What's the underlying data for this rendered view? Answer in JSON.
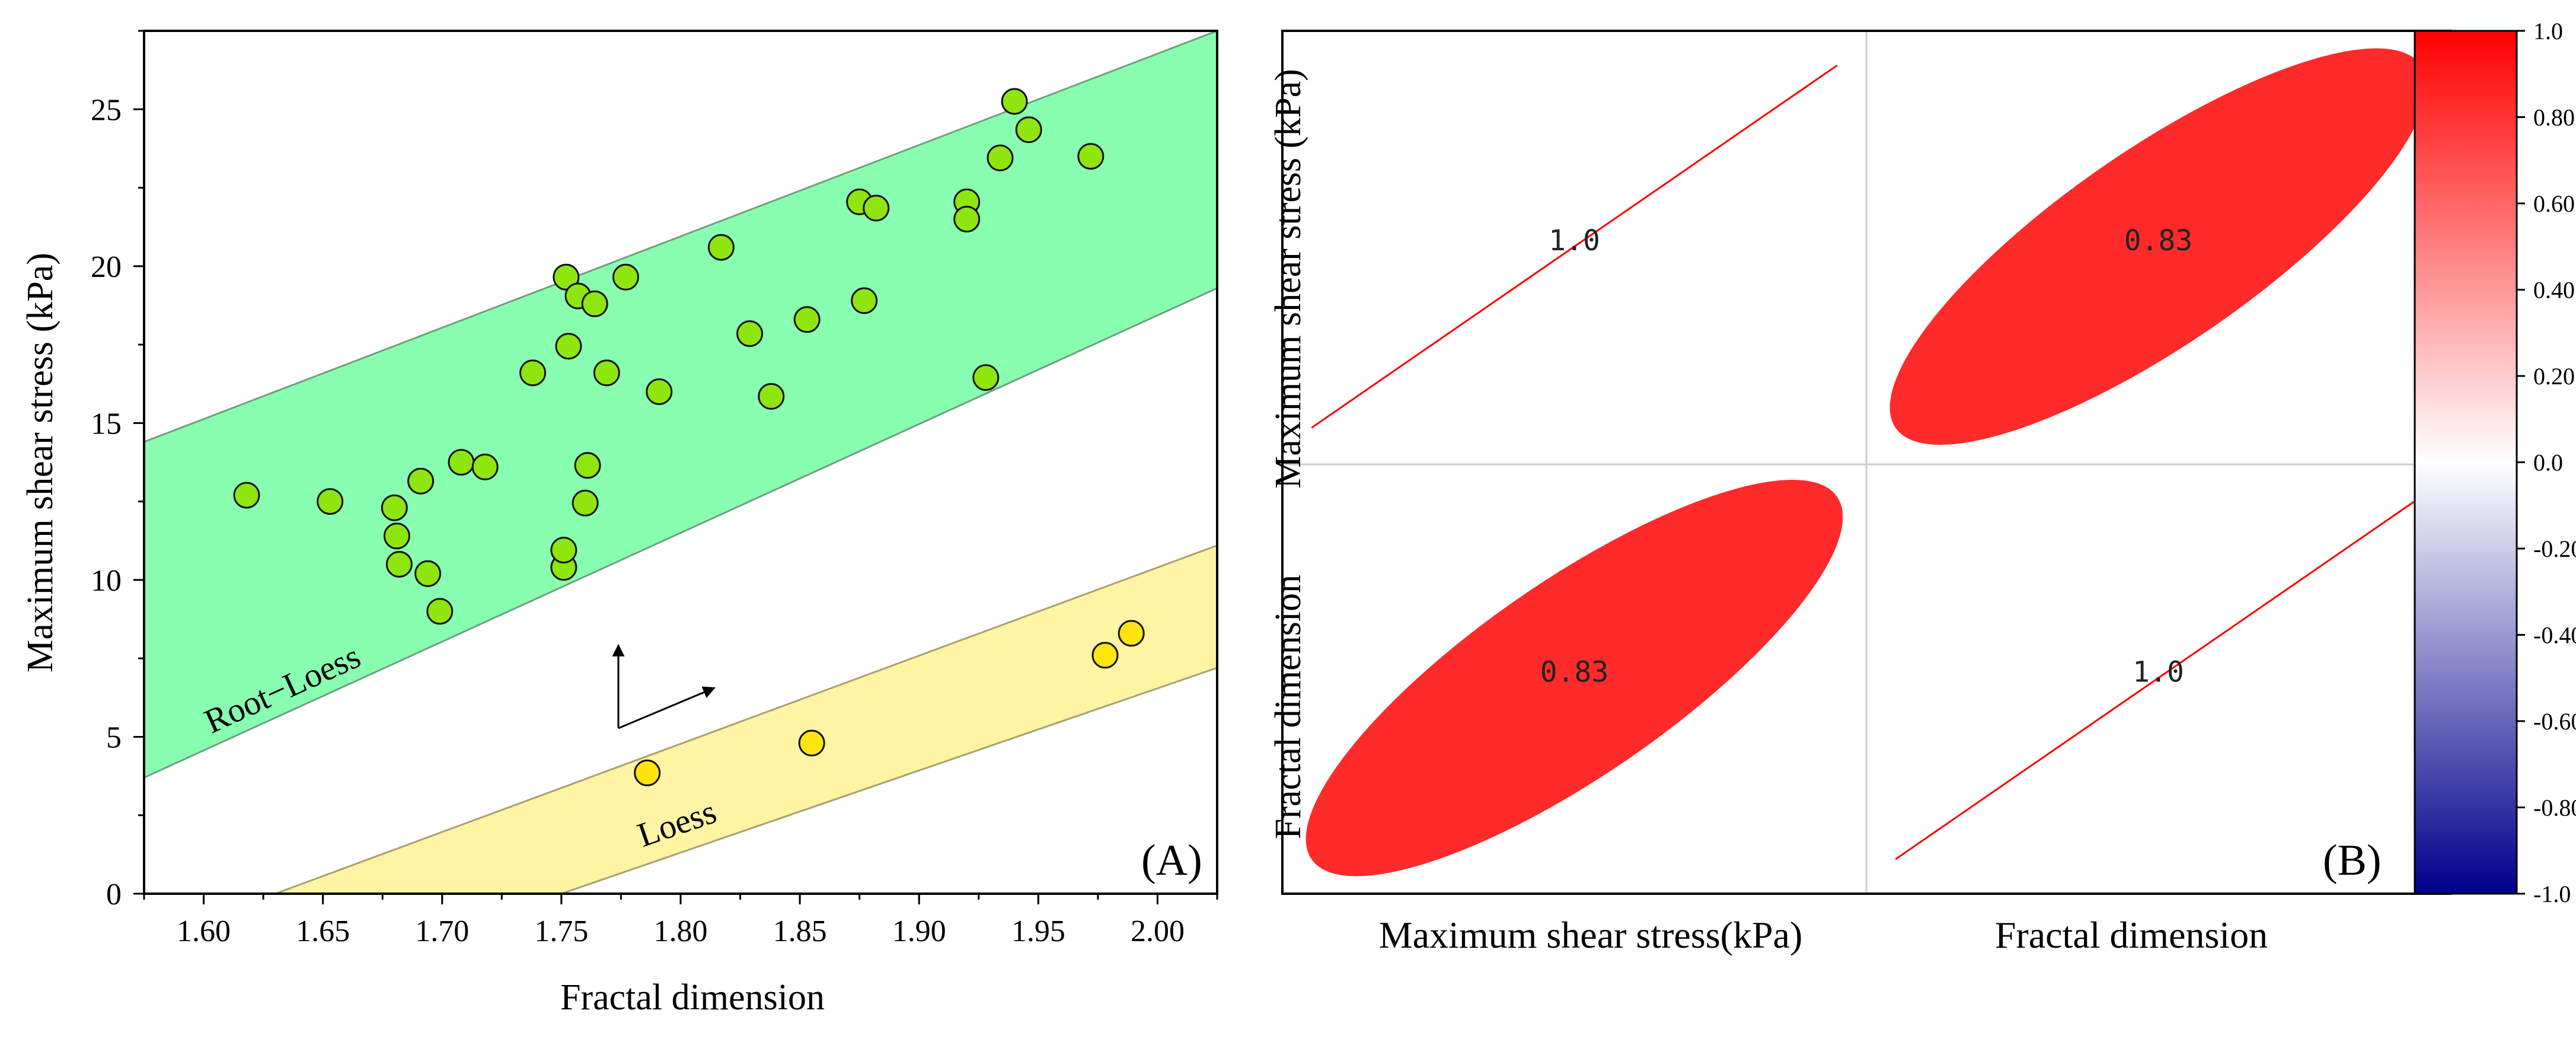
{
  "chart_data": [
    {
      "panel": "A",
      "type": "scatter",
      "panel_label": "(A)",
      "xlabel": "Fractal dimension",
      "ylabel": "Maximum shear stress (kPa)",
      "xlim": [
        1.575,
        2.025
      ],
      "ylim": [
        0,
        27.5
      ],
      "xticks": [
        "1.60",
        "1.65",
        "1.70",
        "1.75",
        "1.80",
        "1.85",
        "1.90",
        "1.95",
        "2.00"
      ],
      "yticks": [
        "0",
        "5",
        "10",
        "15",
        "20",
        "25"
      ],
      "bands": [
        {
          "name": "Root-Loess",
          "label": "Root−Loess",
          "color": "#88ffb0",
          "edge": "#6f9f7f",
          "lower": [
            [
              1.575,
              3.7
            ],
            [
              2.025,
              19.3
            ]
          ],
          "upper": [
            [
              1.575,
              14.4
            ],
            [
              2.025,
              27.5
            ]
          ],
          "label_at": [
            1.635,
            6.2
          ]
        },
        {
          "name": "Loess",
          "label": "Loess",
          "color": "#fff4a3",
          "edge": "#a8a070",
          "lower": [
            [
              1.75,
              0
            ],
            [
              2.025,
              7.2
            ]
          ],
          "upper": [
            [
              1.63,
              0
            ],
            [
              2.025,
              11.1
            ]
          ],
          "label_at": [
            1.8,
            1.9
          ]
        }
      ],
      "series": [
        {
          "name": "Root-Loess",
          "color": "#8fe60f",
          "points": [
            [
              1.618,
              12.7
            ],
            [
              1.653,
              12.5
            ],
            [
              1.68,
              12.3
            ],
            [
              1.681,
              11.4
            ],
            [
              1.682,
              10.5
            ],
            [
              1.691,
              13.15
            ],
            [
              1.694,
              10.2
            ],
            [
              1.699,
              9.0
            ],
            [
              1.708,
              13.75
            ],
            [
              1.718,
              13.6
            ],
            [
              1.738,
              16.6
            ],
            [
              1.751,
              10.4
            ],
            [
              1.751,
              10.95
            ],
            [
              1.752,
              19.65
            ],
            [
              1.753,
              17.45
            ],
            [
              1.757,
              19.05
            ],
            [
              1.76,
              12.45
            ],
            [
              1.761,
              13.65
            ],
            [
              1.764,
              18.8
            ],
            [
              1.769,
              16.6
            ],
            [
              1.777,
              19.65
            ],
            [
              1.791,
              16.0
            ],
            [
              1.817,
              20.6
            ],
            [
              1.829,
              17.85
            ],
            [
              1.838,
              15.85
            ],
            [
              1.853,
              18.3
            ],
            [
              1.875,
              22.05
            ],
            [
              1.877,
              18.9
            ],
            [
              1.882,
              21.85
            ],
            [
              1.92,
              22.05
            ],
            [
              1.92,
              21.5
            ],
            [
              1.928,
              16.45
            ],
            [
              1.934,
              23.45
            ],
            [
              1.94,
              25.25
            ],
            [
              1.946,
              24.35
            ],
            [
              1.972,
              23.5
            ]
          ]
        },
        {
          "name": "Loess",
          "color": "#ffe40f",
          "points": [
            [
              1.786,
              3.85
            ],
            [
              1.855,
              4.8
            ],
            [
              1.978,
              7.6
            ],
            [
              1.989,
              8.3
            ]
          ]
        }
      ],
      "annotations": [
        "arrow-up",
        "arrow-diagonal"
      ]
    },
    {
      "panel": "B",
      "type": "heatmap",
      "panel_label": "(B)",
      "variables": [
        "Maximum shear stress(kPa)",
        "Fractal dimension"
      ],
      "row_labels": [
        "Maximum shear stress (kPa)",
        "Fractal dimension"
      ],
      "matrix": [
        [
          1.0,
          0.83
        ],
        [
          0.83,
          1.0
        ]
      ],
      "cell_labels": [
        [
          "1.0",
          "0.83"
        ],
        [
          "0.83",
          "1.0"
        ]
      ],
      "colorbar": {
        "min": -1.0,
        "max": 1.0,
        "ticks": [
          "1.0",
          "0.80",
          "0.60",
          "0.40",
          "0.20",
          "0.0",
          "-0.20",
          "-0.40",
          "-0.60",
          "-0.80",
          "-1.0"
        ],
        "colors": [
          "#ff0000",
          "#ffffff",
          "#00008b"
        ]
      }
    }
  ]
}
